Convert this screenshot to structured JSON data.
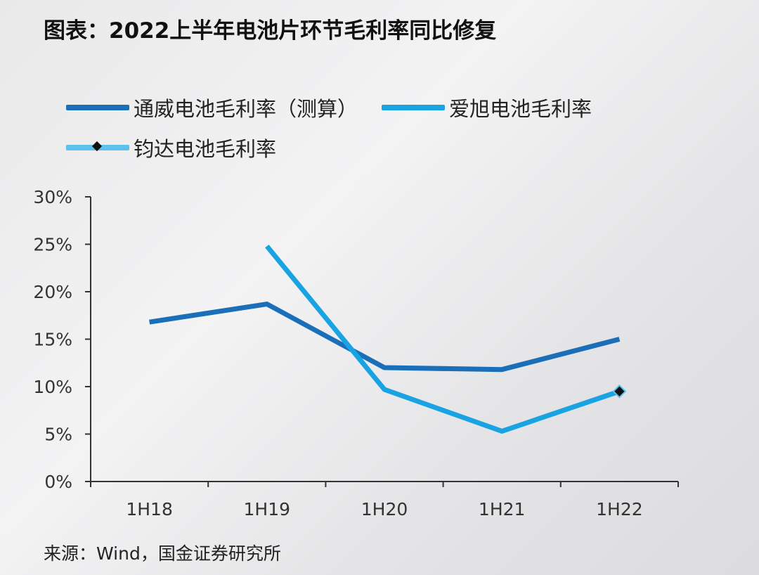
{
  "title": "图表：2022上半年电池片环节毛利率同比修复",
  "source": "来源：Wind，国金证券研究所",
  "colors": {
    "tongwei": "#1b6fb8",
    "aixu": "#19a3e3",
    "junda": "#5ec0ef",
    "marker": "#111111",
    "axis": "#333333"
  },
  "chart_data": {
    "type": "line",
    "categories": [
      "1H18",
      "1H19",
      "1H20",
      "1H21",
      "1H22"
    ],
    "ylim": [
      0,
      30
    ],
    "yticks": [
      "0%",
      "5%",
      "10%",
      "15%",
      "20%",
      "25%",
      "30%"
    ],
    "series": [
      {
        "name": "通威电池毛利率（测算）",
        "values": [
          16.8,
          18.7,
          12.0,
          11.8,
          15.0
        ]
      },
      {
        "name": "爱旭电池毛利率",
        "values": [
          null,
          24.8,
          9.7,
          5.3,
          9.5
        ]
      },
      {
        "name": "钧达电池毛利率",
        "values": [
          null,
          null,
          null,
          null,
          9.5
        ]
      }
    ],
    "legend": "top"
  }
}
